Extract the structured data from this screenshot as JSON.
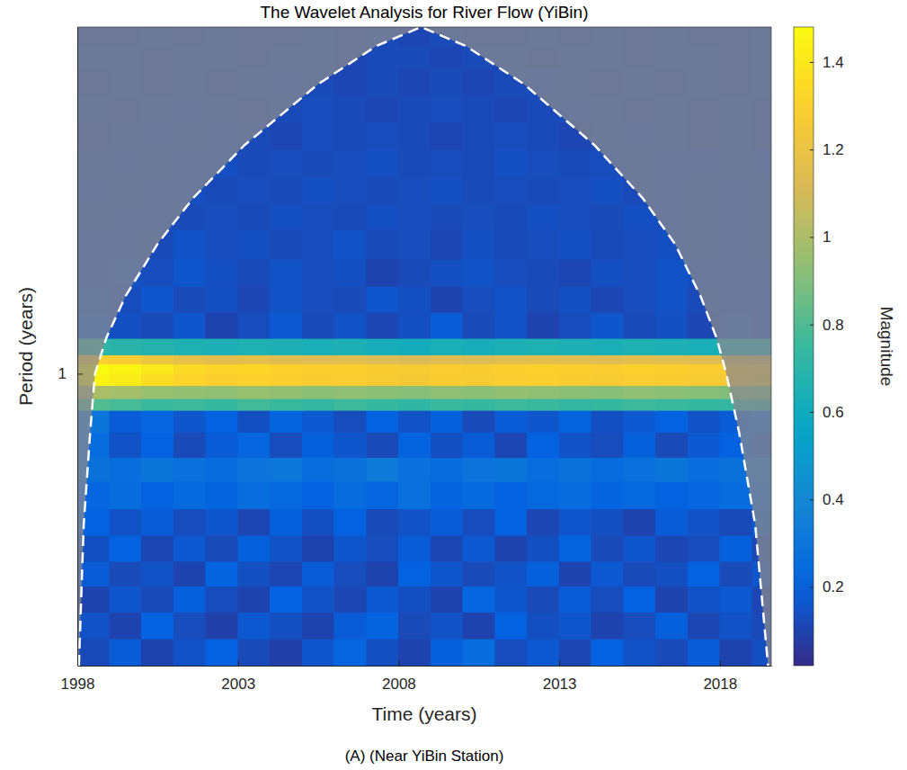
{
  "chart_data": {
    "type": "heatmap",
    "title": "The Wavelet Analysis for River Flow (YiBin)",
    "x_label": "Time (years)",
    "y_label": "Period (years)",
    "caption": "(A) (Near YiBin Station)",
    "log": "y",
    "xlim": [
      1998,
      2019.6
    ],
    "xticks": [
      1998,
      2003,
      2008,
      2013,
      2018
    ],
    "ylim": [
      0.17,
      8.2
    ],
    "yticks": [
      1
    ],
    "x_edges": [
      1998,
      1999,
      2000,
      2001,
      2002,
      2003,
      2004,
      2005,
      2006,
      2007,
      2008,
      2009,
      2010,
      2011,
      2012,
      2013,
      2014,
      2015,
      2016,
      2017,
      2018,
      2019,
      2019.6
    ],
    "y_edges": [
      0.17,
      0.2,
      0.235,
      0.275,
      0.32,
      0.375,
      0.44,
      0.52,
      0.6,
      0.7,
      0.8,
      0.86,
      0.93,
      1.0,
      1.06,
      1.12,
      1.24,
      1.45,
      1.7,
      2.0,
      2.4,
      2.8,
      3.3,
      3.9,
      4.6,
      5.4,
      6.4,
      7.3,
      8.2
    ],
    "cells": [
      [
        0.12,
        0.18,
        0.1,
        0.15,
        0.2,
        0.12,
        0.09,
        0.16,
        0.22,
        0.14,
        0.1,
        0.19,
        0.25,
        0.13,
        0.17,
        0.11,
        0.2,
        0.15,
        0.12,
        0.18,
        0.1,
        0.14
      ],
      [
        0.15,
        0.1,
        0.2,
        0.13,
        0.09,
        0.17,
        0.14,
        0.1,
        0.18,
        0.21,
        0.12,
        0.15,
        0.1,
        0.2,
        0.14,
        0.16,
        0.1,
        0.13,
        0.19,
        0.11,
        0.15,
        0.12
      ],
      [
        0.1,
        0.16,
        0.12,
        0.19,
        0.13,
        0.1,
        0.2,
        0.15,
        0.11,
        0.17,
        0.14,
        0.1,
        0.22,
        0.16,
        0.12,
        0.18,
        0.13,
        0.2,
        0.1,
        0.15,
        0.17,
        0.11
      ],
      [
        0.18,
        0.12,
        0.15,
        0.1,
        0.21,
        0.14,
        0.11,
        0.18,
        0.13,
        0.1,
        0.2,
        0.16,
        0.12,
        0.15,
        0.19,
        0.1,
        0.17,
        0.12,
        0.14,
        0.2,
        0.12,
        0.16
      ],
      [
        0.14,
        0.2,
        0.11,
        0.17,
        0.12,
        0.19,
        0.15,
        0.1,
        0.16,
        0.13,
        0.18,
        0.11,
        0.17,
        0.1,
        0.14,
        0.21,
        0.12,
        0.16,
        0.11,
        0.13,
        0.19,
        0.12
      ],
      [
        0.2,
        0.15,
        0.18,
        0.13,
        0.16,
        0.11,
        0.19,
        0.14,
        0.2,
        0.12,
        0.15,
        0.18,
        0.13,
        0.2,
        0.11,
        0.16,
        0.14,
        0.1,
        0.18,
        0.15,
        0.12,
        0.17
      ],
      [
        0.22,
        0.25,
        0.2,
        0.24,
        0.21,
        0.26,
        0.23,
        0.2,
        0.25,
        0.22,
        0.27,
        0.21,
        0.24,
        0.2,
        0.23,
        0.25,
        0.21,
        0.24,
        0.2,
        0.22,
        0.25,
        0.21
      ],
      [
        0.28,
        0.26,
        0.3,
        0.27,
        0.25,
        0.29,
        0.31,
        0.26,
        0.28,
        0.32,
        0.27,
        0.25,
        0.29,
        0.3,
        0.26,
        0.28,
        0.25,
        0.27,
        0.3,
        0.26,
        0.28,
        0.27
      ],
      [
        0.25,
        0.15,
        0.2,
        0.12,
        0.18,
        0.22,
        0.13,
        0.19,
        0.16,
        0.12,
        0.21,
        0.14,
        0.18,
        0.11,
        0.2,
        0.15,
        0.13,
        0.19,
        0.12,
        0.17,
        0.2,
        0.15
      ],
      [
        0.3,
        0.18,
        0.22,
        0.16,
        0.2,
        0.14,
        0.21,
        0.17,
        0.13,
        0.2,
        0.15,
        0.19,
        0.12,
        0.18,
        0.16,
        0.21,
        0.14,
        0.17,
        0.2,
        0.15,
        0.18,
        0.22
      ],
      [
        0.8,
        0.78,
        0.75,
        0.76,
        0.74,
        0.77,
        0.75,
        0.73,
        0.76,
        0.74,
        0.72,
        0.75,
        0.74,
        0.76,
        0.75,
        0.73,
        0.74,
        0.76,
        0.75,
        0.74,
        0.73,
        0.72
      ],
      [
        1.0,
        0.98,
        0.95,
        0.94,
        0.93,
        0.95,
        0.94,
        0.92,
        0.93,
        0.92,
        0.91,
        0.93,
        0.92,
        0.94,
        0.93,
        0.92,
        0.91,
        0.93,
        0.92,
        0.91,
        0.9,
        0.89
      ],
      [
        1.45,
        1.42,
        1.36,
        1.32,
        1.3,
        1.31,
        1.3,
        1.28,
        1.29,
        1.27,
        1.26,
        1.28,
        1.27,
        1.29,
        1.3,
        1.28,
        1.27,
        1.29,
        1.28,
        1.27,
        1.26,
        1.25
      ],
      [
        1.48,
        1.45,
        1.4,
        1.35,
        1.32,
        1.33,
        1.31,
        1.3,
        1.3,
        1.28,
        1.27,
        1.29,
        1.28,
        1.3,
        1.31,
        1.3,
        1.29,
        1.31,
        1.3,
        1.29,
        1.28,
        1.27
      ],
      [
        1.3,
        1.28,
        1.22,
        1.18,
        1.16,
        1.17,
        1.15,
        1.14,
        1.15,
        1.13,
        1.12,
        1.14,
        1.13,
        1.15,
        1.16,
        1.15,
        1.14,
        1.16,
        1.15,
        1.14,
        1.13,
        1.12
      ],
      [
        0.72,
        0.7,
        0.68,
        0.66,
        0.65,
        0.66,
        0.65,
        0.64,
        0.65,
        0.63,
        0.62,
        0.64,
        0.63,
        0.65,
        0.66,
        0.65,
        0.64,
        0.66,
        0.65,
        0.64,
        0.63,
        0.62
      ],
      [
        0.18,
        0.14,
        0.12,
        0.16,
        0.1,
        0.13,
        0.17,
        0.12,
        0.15,
        0.11,
        0.14,
        0.18,
        0.12,
        0.15,
        0.1,
        0.13,
        0.16,
        0.12,
        0.14,
        0.11,
        0.15,
        0.13
      ],
      [
        0.15,
        0.13,
        0.16,
        0.12,
        0.14,
        0.11,
        0.15,
        0.13,
        0.12,
        0.16,
        0.14,
        0.1,
        0.13,
        0.15,
        0.12,
        0.14,
        0.11,
        0.13,
        0.15,
        0.12,
        0.14,
        0.13
      ],
      [
        0.14,
        0.15,
        0.13,
        0.16,
        0.14,
        0.12,
        0.15,
        0.13,
        0.14,
        0.1,
        0.12,
        0.14,
        0.15,
        0.13,
        0.12,
        0.11,
        0.14,
        0.13,
        0.15,
        0.14,
        0.13,
        0.14
      ],
      [
        0.13,
        0.14,
        0.12,
        0.15,
        0.13,
        0.14,
        0.12,
        0.13,
        0.15,
        0.12,
        0.13,
        0.11,
        0.14,
        0.12,
        0.13,
        0.14,
        0.12,
        0.13,
        0.14,
        0.12,
        0.13,
        0.12
      ],
      [
        0.12,
        0.13,
        0.14,
        0.12,
        0.13,
        0.12,
        0.14,
        0.13,
        0.12,
        0.14,
        0.13,
        0.12,
        0.13,
        0.12,
        0.14,
        0.13,
        0.12,
        0.14,
        0.13,
        0.12,
        0.13,
        0.12
      ],
      [
        0.13,
        0.12,
        0.13,
        0.14,
        0.12,
        0.13,
        0.12,
        0.14,
        0.13,
        0.12,
        0.13,
        0.14,
        0.12,
        0.13,
        0.12,
        0.13,
        0.14,
        0.12,
        0.13,
        0.12,
        0.13,
        0.12
      ],
      [
        0.12,
        0.13,
        0.12,
        0.13,
        0.14,
        0.12,
        0.13,
        0.12,
        0.13,
        0.14,
        0.12,
        0.13,
        0.12,
        0.14,
        0.13,
        0.12,
        0.13,
        0.12,
        0.14,
        0.13,
        0.12,
        0.13
      ],
      [
        0.11,
        0.12,
        0.13,
        0.12,
        0.13,
        0.12,
        0.11,
        0.13,
        0.12,
        0.13,
        0.12,
        0.11,
        0.12,
        0.13,
        0.12,
        0.11,
        0.12,
        0.13,
        0.12,
        0.11,
        0.12,
        0.11
      ],
      [
        0.12,
        0.11,
        0.12,
        0.13,
        0.12,
        0.11,
        0.12,
        0.13,
        0.12,
        0.11,
        0.12,
        0.13,
        0.12,
        0.11,
        0.12,
        0.13,
        0.12,
        0.11,
        0.12,
        0.11,
        0.12,
        0.11
      ],
      [
        0.11,
        0.12,
        0.11,
        0.12,
        0.11,
        0.12,
        0.13,
        0.12,
        0.11,
        0.12,
        0.11,
        0.12,
        0.11,
        0.12,
        0.13,
        0.12,
        0.11,
        0.12,
        0.11,
        0.12,
        0.11,
        0.12
      ],
      [
        0.12,
        0.12,
        0.11,
        0.12,
        0.12,
        0.11,
        0.12,
        0.12,
        0.11,
        0.12,
        0.12,
        0.11,
        0.12,
        0.12,
        0.11,
        0.12,
        0.12,
        0.11,
        0.12,
        0.12,
        0.11,
        0.12
      ],
      [
        0.11,
        0.11,
        0.12,
        0.11,
        0.12,
        0.11,
        0.11,
        0.12,
        0.11,
        0.12,
        0.11,
        0.12,
        0.11,
        0.11,
        0.12,
        0.11,
        0.12,
        0.11,
        0.12,
        0.11,
        0.11,
        0.12
      ]
    ],
    "colorbar": {
      "label": "Magnitude",
      "range": [
        0.02,
        1.48
      ],
      "ticks": [
        0.2,
        0.4,
        0.6,
        0.8,
        1,
        1.2,
        1.4
      ]
    },
    "cone_of_influence": {
      "x": [
        1998.05,
        1998.2,
        1998.4,
        1998.55,
        1998.9,
        1999.5,
        2000.5,
        2001.6,
        2003.2,
        2005.5,
        2007.3,
        2008.7,
        2010.1,
        2011.9,
        2014.1,
        2015.6,
        2016.6,
        2017.4,
        2017.9,
        2018.2,
        2018.6,
        2019.1,
        2019.5
      ],
      "y": [
        0.17,
        0.4,
        0.7,
        1.0,
        1.24,
        1.6,
        2.2,
        2.9,
        4.0,
        5.8,
        7.3,
        8.2,
        7.3,
        5.8,
        4.0,
        2.9,
        2.2,
        1.6,
        1.24,
        1.0,
        0.7,
        0.4,
        0.17
      ]
    }
  }
}
